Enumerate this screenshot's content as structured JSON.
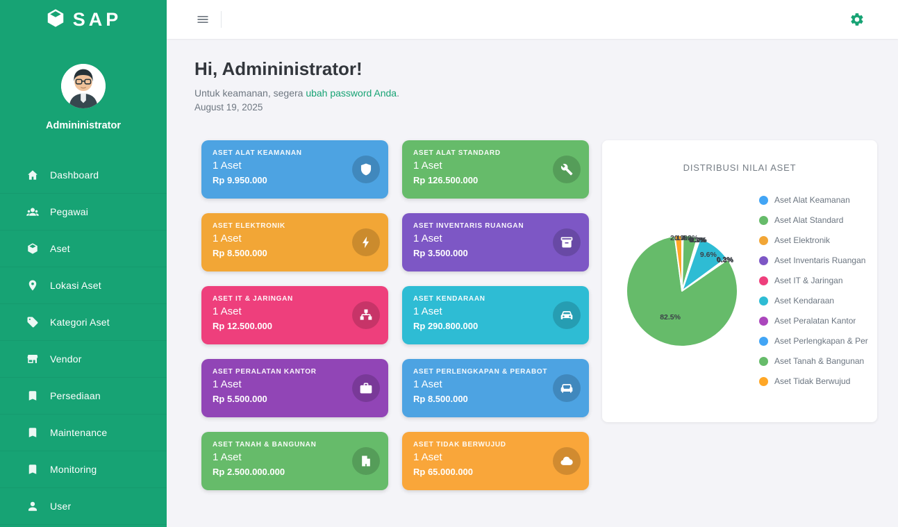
{
  "colors": {
    "accent": "#17a374",
    "content_bg": "#f4f4f8"
  },
  "app": {
    "logo_text": "SAP"
  },
  "sidebar": {
    "user_name": "Admininistrator",
    "items": [
      {
        "label": "Dashboard",
        "icon": "home-icon"
      },
      {
        "label": "Pegawai",
        "icon": "people-icon"
      },
      {
        "label": "Aset",
        "icon": "cube-icon"
      },
      {
        "label": "Lokasi Aset",
        "icon": "location-pin-icon"
      },
      {
        "label": "Kategori Aset",
        "icon": "tag-icon"
      },
      {
        "label": "Vendor",
        "icon": "store-icon"
      },
      {
        "label": "Persediaan",
        "icon": "bookmark-icon"
      },
      {
        "label": "Maintenance",
        "icon": "bookmark-icon"
      },
      {
        "label": "Monitoring",
        "icon": "bookmark-icon"
      },
      {
        "label": "User",
        "icon": "person-icon"
      }
    ]
  },
  "greeting": {
    "title": "Hi, Admininistrator!",
    "message_prefix": "Untuk keamanan, segera ",
    "password_link": "ubah password Anda",
    "message_suffix": ".",
    "date": "August 19, 2025"
  },
  "summary_cards": [
    {
      "title": "ASET ALAT KEAMANAN",
      "count": "1 Aset",
      "value": "Rp 9.950.000",
      "color": "#4da3e2",
      "icon": "shield-icon"
    },
    {
      "title": "ASET ALAT STANDARD",
      "count": "1 Aset",
      "value": "Rp 126.500.000",
      "color": "#66bb6a",
      "icon": "tools-icon"
    },
    {
      "title": "ASET ELEKTRONIK",
      "count": "1 Aset",
      "value": "Rp 8.500.000",
      "color": "#f2a636",
      "icon": "charging-icon"
    },
    {
      "title": "ASET INVENTARIS RUANGAN",
      "count": "1 Aset",
      "value": "Rp 3.500.000",
      "color": "#7d57c5",
      "icon": "inventory-icon"
    },
    {
      "title": "ASET IT & JARINGAN",
      "count": "1 Aset",
      "value": "Rp 12.500.000",
      "color": "#ee3f7c",
      "icon": "network-icon"
    },
    {
      "title": "ASET KENDARAAN",
      "count": "1 Aset",
      "value": "Rp 290.800.000",
      "color": "#2ebcd4",
      "icon": "car-icon"
    },
    {
      "title": "ASET PERALATAN KANTOR",
      "count": "1 Aset",
      "value": "Rp 5.500.000",
      "color": "#9145b6",
      "icon": "briefcase-icon"
    },
    {
      "title": "ASET PERLENGKAPAN & PERABOT",
      "count": "1 Aset",
      "value": "Rp 8.500.000",
      "color": "#4da3e2",
      "icon": "sofa-icon"
    },
    {
      "title": "ASET TANAH & BANGUNAN",
      "count": "1 Aset",
      "value": "Rp 2.500.000.000",
      "color": "#66bb6a",
      "icon": "building-icon"
    },
    {
      "title": "ASET TIDAK BERWUJUD",
      "count": "1 Aset",
      "value": "Rp 65.000.000",
      "color": "#f9a63a",
      "icon": "cloud-icon"
    }
  ],
  "chart_data": {
    "type": "pie",
    "title": "DISTRIBUSI NILAI ASET",
    "labels": [
      "Aset Alat Keamanan",
      "Aset Alat Standard",
      "Aset Elektronik",
      "Aset Inventaris Ruangan",
      "Aset IT & Jaringan",
      "Aset Kendaraan",
      "Aset Peralatan Kantor",
      "Aset Perlengkapan & Per",
      "Aset Tanah & Bangunan",
      "Aset Tidak Berwujud"
    ],
    "values": [
      0.3,
      4.2,
      0.3,
      0.1,
      0.4,
      9.6,
      0.2,
      0.3,
      82.5,
      2.1
    ],
    "unit": "%",
    "colors": [
      "#42a5f5",
      "#66bb6a",
      "#f2a636",
      "#7d57c5",
      "#ee3f7c",
      "#2ebcd4",
      "#ab47bc",
      "#42a5f5",
      "#66bb6a",
      "#ffa726"
    ],
    "legend_position": "right"
  }
}
